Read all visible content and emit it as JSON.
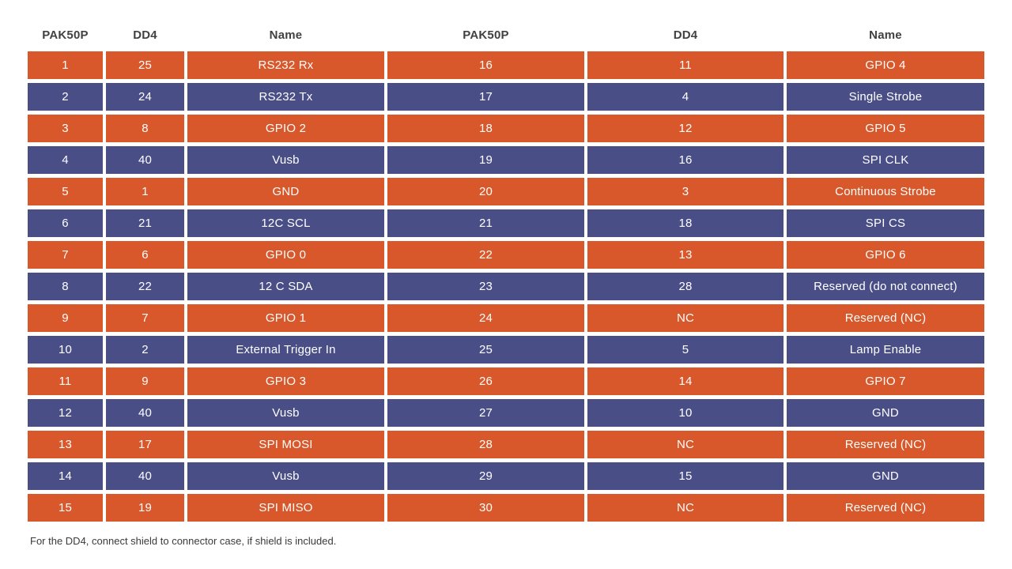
{
  "table": {
    "header_labels": [
      "PAK50P",
      "DD4",
      "Name",
      "PAK50P",
      "DD4",
      "Name"
    ],
    "rows": [
      {
        "left": {
          "pak50p": "1",
          "dd4": "25",
          "name": "RS232 Rx"
        },
        "right": {
          "pak50p": "16",
          "dd4": "11",
          "name": "GPIO 4"
        }
      },
      {
        "left": {
          "pak50p": "2",
          "dd4": "24",
          "name": "RS232 Tx"
        },
        "right": {
          "pak50p": "17",
          "dd4": "4",
          "name": "Single Strobe"
        }
      },
      {
        "left": {
          "pak50p": "3",
          "dd4": "8",
          "name": "GPIO 2"
        },
        "right": {
          "pak50p": "18",
          "dd4": "12",
          "name": "GPIO 5"
        }
      },
      {
        "left": {
          "pak50p": "4",
          "dd4": "40",
          "name": "Vusb"
        },
        "right": {
          "pak50p": "19",
          "dd4": "16",
          "name": "SPI CLK"
        }
      },
      {
        "left": {
          "pak50p": "5",
          "dd4": "1",
          "name": "GND"
        },
        "right": {
          "pak50p": "20",
          "dd4": "3",
          "name": "Continuous Strobe"
        }
      },
      {
        "left": {
          "pak50p": "6",
          "dd4": "21",
          "name": "12C SCL"
        },
        "right": {
          "pak50p": "21",
          "dd4": "18",
          "name": "SPI CS"
        }
      },
      {
        "left": {
          "pak50p": "7",
          "dd4": "6",
          "name": "GPIO 0"
        },
        "right": {
          "pak50p": "22",
          "dd4": "13",
          "name": "GPIO 6"
        }
      },
      {
        "left": {
          "pak50p": "8",
          "dd4": "22",
          "name": "12 C SDA"
        },
        "right": {
          "pak50p": "23",
          "dd4": "28",
          "name": "Reserved (do not connect)"
        }
      },
      {
        "left": {
          "pak50p": "9",
          "dd4": "7",
          "name": "GPIO 1"
        },
        "right": {
          "pak50p": "24",
          "dd4": "NC",
          "name": "Reserved (NC)"
        }
      },
      {
        "left": {
          "pak50p": "10",
          "dd4": "2",
          "name": "External Trigger In"
        },
        "right": {
          "pak50p": "25",
          "dd4": "5",
          "name": "Lamp Enable"
        }
      },
      {
        "left": {
          "pak50p": "11",
          "dd4": "9",
          "name": "GPIO 3"
        },
        "right": {
          "pak50p": "26",
          "dd4": "14",
          "name": "GPIO 7"
        }
      },
      {
        "left": {
          "pak50p": "12",
          "dd4": "40",
          "name": "Vusb"
        },
        "right": {
          "pak50p": "27",
          "dd4": "10",
          "name": "GND"
        }
      },
      {
        "left": {
          "pak50p": "13",
          "dd4": "17",
          "name": "SPI MOSI"
        },
        "right": {
          "pak50p": "28",
          "dd4": "NC",
          "name": "Reserved (NC)"
        }
      },
      {
        "left": {
          "pak50p": "14",
          "dd4": "40",
          "name": "Vusb"
        },
        "right": {
          "pak50p": "29",
          "dd4": "15",
          "name": "GND"
        }
      },
      {
        "left": {
          "pak50p": "15",
          "dd4": "19",
          "name": "SPI MISO"
        },
        "right": {
          "pak50p": "30",
          "dd4": "NC",
          "name": "Reserved (NC)"
        }
      }
    ]
  },
  "colors": {
    "row_odd": "#D8582B",
    "row_even": "#4A4E87",
    "header_text": "#414042",
    "cell_text": "#FFFFFF"
  },
  "footnote": "For the DD4, connect shield to connector case, if shield is included."
}
